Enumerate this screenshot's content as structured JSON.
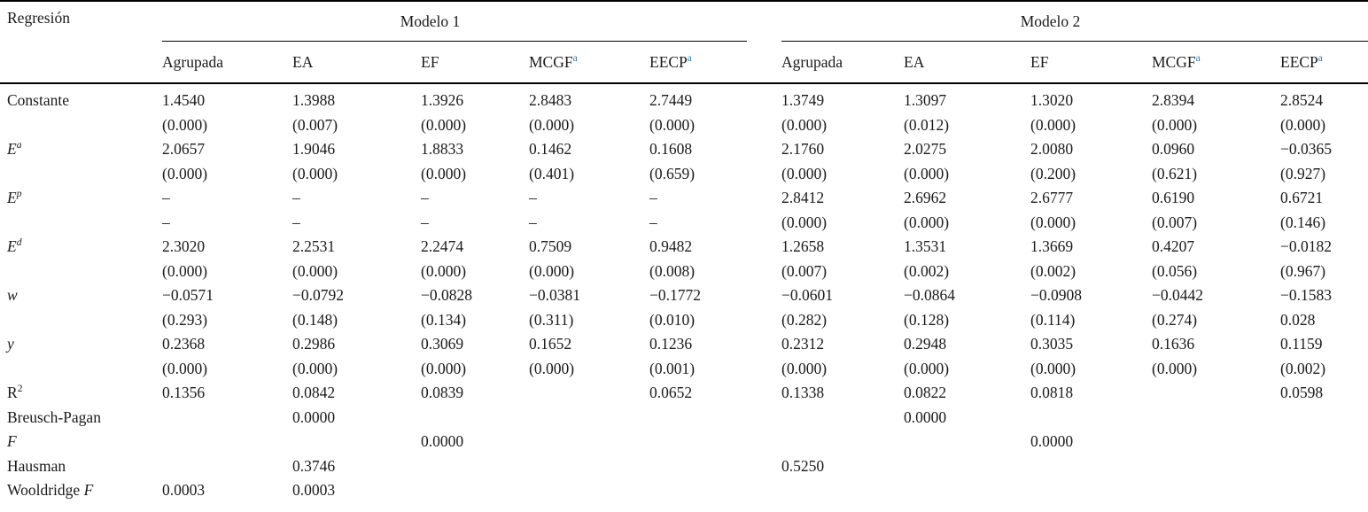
{
  "table": {
    "corner_label": "Regresión",
    "note_mark": "a",
    "groups": [
      {
        "label": "Modelo 1",
        "columns": [
          "Agrupada",
          "EA",
          "EF",
          "MCGF",
          "EECP"
        ]
      },
      {
        "label": "Modelo 2",
        "columns": [
          "Agrupada",
          "EA",
          "EF",
          "MCGF",
          "EECP"
        ]
      }
    ],
    "rows": [
      {
        "label": [
          [
            "Constante",
            ""
          ]
        ],
        "cells": [
          "1.4540",
          "1.3988",
          "1.3926",
          "2.8483",
          "2.7449",
          "1.3749",
          "1.3097",
          "1.3020",
          "2.8394",
          "2.8524"
        ]
      },
      {
        "label": [],
        "cells": [
          "(0.000)",
          "(0.007)",
          "(0.000)",
          "(0.000)",
          "(0.000)",
          "(0.000)",
          "(0.012)",
          "(0.000)",
          "(0.000)",
          "(0.000)"
        ]
      },
      {
        "label": [
          [
            "E",
            "i"
          ],
          [
            "a",
            "sup-i"
          ]
        ],
        "cells": [
          "2.0657",
          "1.9046",
          "1.8833",
          "0.1462",
          "0.1608",
          "2.1760",
          "2.0275",
          "2.0080",
          "0.0960",
          "−0.0365"
        ]
      },
      {
        "label": [],
        "cells": [
          "(0.000)",
          "(0.000)",
          "(0.000)",
          "(0.401)",
          "(0.659)",
          "(0.000)",
          "(0.000)",
          "(0.200)",
          "(0.621)",
          "(0.927)"
        ]
      },
      {
        "label": [
          [
            "E",
            "i"
          ],
          [
            "p",
            "sup-i"
          ]
        ],
        "cells": [
          "–",
          "–",
          "–",
          "–",
          "–",
          "2.8412",
          "2.6962",
          "2.6777",
          "0.6190",
          "0.6721"
        ]
      },
      {
        "label": [],
        "cells": [
          "–",
          "–",
          "–",
          "–",
          "–",
          "(0.000)",
          "(0.000)",
          "(0.000)",
          "(0.007)",
          "(0.146)"
        ]
      },
      {
        "label": [
          [
            "E",
            "i"
          ],
          [
            "d",
            "sup-i"
          ]
        ],
        "cells": [
          "2.3020",
          "2.2531",
          "2.2474",
          "0.7509",
          "0.9482",
          "1.2658",
          "1.3531",
          "1.3669",
          "0.4207",
          "−0.0182"
        ]
      },
      {
        "label": [],
        "cells": [
          "(0.000)",
          "(0.000)",
          "(0.000)",
          "(0.000)",
          "(0.008)",
          "(0.007)",
          "(0.002)",
          "(0.002)",
          "(0.056)",
          "(0.967)"
        ]
      },
      {
        "label": [
          [
            "w",
            "i"
          ]
        ],
        "cells": [
          "−0.0571",
          "−0.0792",
          "−0.0828",
          "−0.0381",
          "−0.1772",
          "−0.0601",
          "−0.0864",
          "−0.0908",
          "−0.0442",
          "−0.1583"
        ]
      },
      {
        "label": [],
        "cells": [
          "(0.293)",
          "(0.148)",
          "(0.134)",
          "(0.311)",
          "(0.010)",
          "(0.282)",
          "(0.128)",
          "(0.114)",
          "(0.274)",
          "0.028"
        ]
      },
      {
        "label": [
          [
            "y",
            "i"
          ]
        ],
        "cells": [
          "0.2368",
          "0.2986",
          "0.3069",
          "0.1652",
          "0.1236",
          "0.2312",
          "0.2948",
          "0.3035",
          "0.1636",
          "0.1159"
        ]
      },
      {
        "label": [],
        "cells": [
          "(0.000)",
          "(0.000)",
          "(0.000)",
          "(0.000)",
          "(0.001)",
          "(0.000)",
          "(0.000)",
          "(0.000)",
          "(0.000)",
          "(0.002)"
        ]
      },
      {
        "label": [
          [
            "R",
            ""
          ],
          [
            "2",
            "sup"
          ]
        ],
        "cells": [
          "0.1356",
          "0.0842",
          "0.0839",
          "",
          "0.0652",
          "0.1338",
          "0.0822",
          "0.0818",
          "",
          "0.0598"
        ]
      },
      {
        "label": [
          [
            "Breusch-Pagan",
            ""
          ]
        ],
        "cells": [
          "",
          "0.0000",
          "",
          "",
          "",
          "",
          "0.0000",
          "",
          "",
          ""
        ]
      },
      {
        "label": [
          [
            "F",
            "i"
          ]
        ],
        "cells": [
          "",
          "",
          "0.0000",
          "",
          "",
          "",
          "",
          "0.0000",
          "",
          ""
        ]
      },
      {
        "label": [
          [
            "Hausman",
            ""
          ]
        ],
        "cells": [
          "",
          "0.3746",
          "",
          "",
          "",
          "0.5250",
          "",
          "",
          "",
          ""
        ]
      },
      {
        "label": [
          [
            "Wooldridge ",
            ""
          ],
          [
            "F",
            "i"
          ]
        ],
        "cells": [
          "0.0003",
          "0.0003",
          "",
          "",
          "",
          "",
          "",
          "",
          "",
          ""
        ]
      }
    ]
  },
  "colors": {
    "note_mark": "#2e7cb8",
    "text": "#1a1a1a",
    "rule": "#000000"
  }
}
